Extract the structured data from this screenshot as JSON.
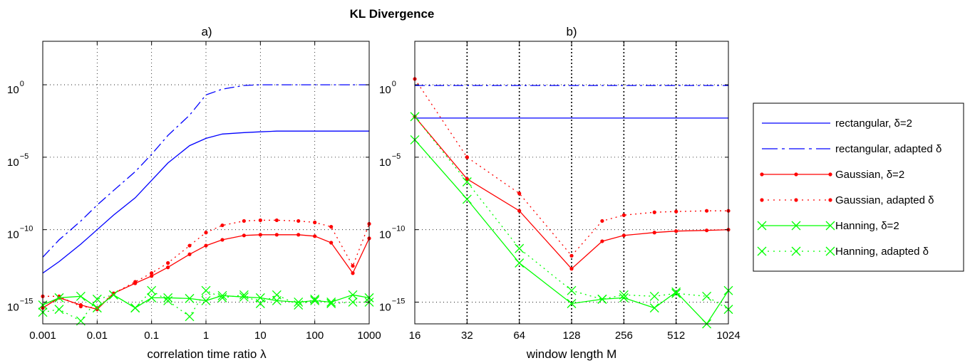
{
  "figure_title": "KL Divergence",
  "chart_data": [
    {
      "type": "line",
      "title": "a)",
      "xlabel": "correlation time ratio λ",
      "ylabel": "",
      "xscale": "log",
      "yscale": "log",
      "xlim": [
        0.001,
        1000
      ],
      "ylim_log10": [
        -16.5,
        3
      ],
      "x_tick_labels": [
        "0.001",
        "0.01",
        "0.1",
        "1",
        "10",
        "100",
        "1000"
      ],
      "x_ticks": [
        0.001,
        0.01,
        0.1,
        1,
        10,
        100,
        1000
      ],
      "y_ticks_log10": [
        0,
        -5,
        -10,
        -15
      ],
      "y_tick_base": "10",
      "y_tick_exponents": [
        "0",
        "−5",
        "−10",
        "−15"
      ],
      "grid": true,
      "series": [
        {
          "name": "rectangular, δ=2",
          "color": "#0000ff",
          "style": "solid",
          "marker": "none",
          "x": [
            0.001,
            0.002,
            0.005,
            0.01,
            0.02,
            0.05,
            0.1,
            0.2,
            0.5,
            1,
            2,
            5,
            10,
            20,
            50,
            100,
            200,
            500,
            1000
          ],
          "log10y": [
            -13,
            -12.2,
            -11,
            -10,
            -9,
            -7.8,
            -6.6,
            -5.4,
            -4.2,
            -3.7,
            -3.4,
            -3.3,
            -3.25,
            -3.2,
            -3.2,
            -3.2,
            -3.2,
            -3.2,
            -3.2
          ]
        },
        {
          "name": "rectangular, adapted δ",
          "color": "#0000ff",
          "style": "dashdot",
          "marker": "none",
          "x": [
            0.001,
            0.002,
            0.005,
            0.01,
            0.02,
            0.05,
            0.1,
            0.2,
            0.5,
            1,
            2,
            5,
            10,
            20,
            50,
            100,
            200,
            500,
            1000
          ],
          "log10y": [
            -11.9,
            -10.7,
            -9.4,
            -8.3,
            -7.3,
            -6,
            -4.8,
            -3.5,
            -2.1,
            -0.7,
            -0.3,
            -0.05,
            0,
            0,
            0,
            0,
            0,
            0,
            0
          ]
        },
        {
          "name": "Gaussian, δ=2",
          "color": "#ff0000",
          "style": "solid",
          "marker": "dot",
          "x": [
            0.001,
            0.002,
            0.005,
            0.01,
            0.02,
            0.05,
            0.1,
            0.2,
            0.5,
            1,
            2,
            5,
            10,
            20,
            50,
            100,
            200,
            500,
            1000
          ],
          "log10y": [
            -15.4,
            -14.7,
            -15.2,
            -15.5,
            -14.4,
            -13.7,
            -13.2,
            -12.6,
            -11.7,
            -11.1,
            -10.7,
            -10.4,
            -10.35,
            -10.35,
            -10.35,
            -10.45,
            -10.9,
            -13,
            -10.6
          ]
        },
        {
          "name": "Gaussian, adapted δ",
          "color": "#ff0000",
          "style": "dotted",
          "marker": "dot",
          "x": [
            0.001,
            0.002,
            0.005,
            0.01,
            0.02,
            0.05,
            0.1,
            0.2,
            0.5,
            1,
            2,
            5,
            10,
            20,
            50,
            100,
            200,
            500,
            1000
          ],
          "log10y": [
            -14.6,
            -14.6,
            -15.3,
            -15.4,
            -14.4,
            -13.6,
            -13,
            -12.3,
            -11.1,
            -10.2,
            -9.7,
            -9.4,
            -9.35,
            -9.35,
            -9.4,
            -9.5,
            -9.8,
            -12.5,
            -9.6
          ]
        },
        {
          "name": "Hanning, δ=2",
          "color": "#00ff00",
          "style": "solid",
          "marker": "x",
          "x": [
            0.001,
            0.002,
            0.005,
            0.01,
            0.02,
            0.05,
            0.1,
            0.2,
            0.5,
            1,
            2,
            5,
            10,
            20,
            50,
            100,
            200,
            500,
            1000
          ],
          "log10y": [
            -15.2,
            -14.7,
            -14.6,
            -15.4,
            -14.5,
            -15.4,
            -14.7,
            -14.7,
            -14.75,
            -14.9,
            -14.55,
            -14.65,
            -14.7,
            -14.9,
            -15,
            -14.9,
            -15,
            -14.5,
            -14.7
          ]
        },
        {
          "name": "Hanning, adapted δ",
          "color": "#00ff00",
          "style": "dotted",
          "marker": "x",
          "x": [
            0.001,
            0.002,
            0.005,
            0.01,
            0.02,
            0.05,
            0.1,
            0.2,
            0.5,
            1,
            2,
            5,
            10,
            20,
            50,
            100,
            200,
            500,
            1000
          ],
          "log10y": [
            -15.7,
            -15.5,
            -16.3,
            -14.8,
            -14.5,
            -15.4,
            -14.2,
            -14.9,
            -16,
            -14.2,
            -14.7,
            -14.5,
            -15.1,
            -14.5,
            -15.2,
            -14.8,
            -15.1,
            -15,
            -15
          ]
        }
      ]
    },
    {
      "type": "line",
      "title": "b)",
      "xlabel": "window length M",
      "ylabel": "",
      "xscale": "log2",
      "yscale": "log",
      "xlim": [
        16,
        1024
      ],
      "ylim_log10": [
        -16.5,
        3
      ],
      "x_tick_labels": [
        "16",
        "32",
        "64",
        "128",
        "256",
        "512",
        "1024"
      ],
      "x_ticks": [
        16,
        32,
        64,
        128,
        256,
        512,
        1024
      ],
      "y_ticks_log10": [
        0,
        -5,
        -10,
        -15
      ],
      "y_tick_base": "10",
      "y_tick_exponents": [
        "0",
        "−5",
        "−10",
        "−15"
      ],
      "grid": true,
      "series": [
        {
          "name": "rectangular, δ=2",
          "color": "#0000ff",
          "style": "solid",
          "marker": "none",
          "x": [
            16,
            1024
          ],
          "log10y": [
            -2.3,
            -2.3
          ]
        },
        {
          "name": "rectangular, adapted δ",
          "color": "#0000ff",
          "style": "dashdot",
          "marker": "none",
          "x": [
            16,
            1024
          ],
          "log10y": [
            -0.05,
            -0.05
          ]
        },
        {
          "name": "Gaussian, δ=2",
          "color": "#ff0000",
          "style": "solid",
          "marker": "dot",
          "x": [
            16,
            32,
            64,
            128,
            192,
            256,
            384,
            512,
            768,
            1024
          ],
          "log10y": [
            -2.2,
            -6.5,
            -8.7,
            -12.7,
            -10.8,
            -10.4,
            -10.2,
            -10.1,
            -10.05,
            -10
          ]
        },
        {
          "name": "Gaussian, adapted δ",
          "color": "#ff0000",
          "style": "dotted",
          "marker": "dot",
          "x": [
            16,
            32,
            64,
            128,
            192,
            256,
            384,
            512,
            768,
            1024
          ],
          "log10y": [
            0.4,
            -5,
            -7.5,
            -11.8,
            -9.4,
            -9,
            -8.8,
            -8.75,
            -8.7,
            -8.7
          ]
        },
        {
          "name": "Hanning, δ=2",
          "color": "#00ff00",
          "style": "solid",
          "marker": "x",
          "x": [
            16,
            32,
            64,
            128,
            192,
            256,
            384,
            512,
            768,
            1024
          ],
          "log10y": [
            -3.8,
            -7.9,
            -12.3,
            -15.1,
            -14.8,
            -14.7,
            -15.4,
            -14.3,
            -16.5,
            -14.2
          ]
        },
        {
          "name": "Hanning, adapted δ",
          "color": "#00ff00",
          "style": "dotted",
          "marker": "x",
          "x": [
            16,
            32,
            64,
            128,
            192,
            256,
            384,
            512,
            768,
            1024
          ],
          "log10y": [
            -2.2,
            -6.7,
            -11.3,
            -14.2,
            -14.8,
            -14.5,
            -14.6,
            -14.4,
            -14.6,
            -15.5
          ]
        }
      ]
    }
  ],
  "legend": {
    "placement": "right",
    "entries": [
      {
        "label": "rectangular, δ=2",
        "color": "#0000ff",
        "style": "solid",
        "marker": "none"
      },
      {
        "label": "rectangular, adapted δ",
        "color": "#0000ff",
        "style": "dashdot",
        "marker": "none"
      },
      {
        "label": "Gaussian, δ=2",
        "color": "#ff0000",
        "style": "solid",
        "marker": "dot"
      },
      {
        "label": "Gaussian, adapted δ",
        "color": "#ff0000",
        "style": "dotted",
        "marker": "dot"
      },
      {
        "label": "Hanning, δ=2",
        "color": "#00ff00",
        "style": "solid",
        "marker": "x"
      },
      {
        "label": "Hanning, adapted δ",
        "color": "#00ff00",
        "style": "dotted",
        "marker": "x"
      }
    ]
  }
}
